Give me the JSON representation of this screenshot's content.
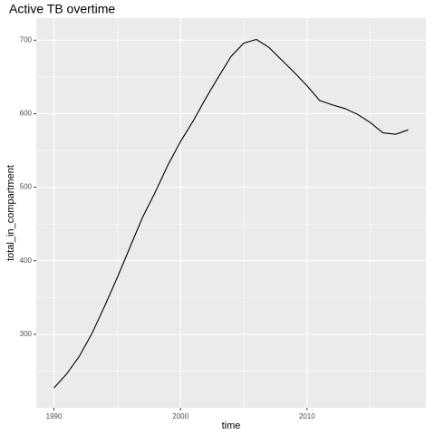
{
  "chart_data": {
    "type": "line",
    "title": "Active TB overtime",
    "x_label": "time",
    "y_label": "total_in_compartment",
    "x": [
      1990,
      1991,
      1992,
      1993,
      1994,
      1995,
      1996,
      1997,
      1998,
      1999,
      2000,
      2001,
      2002,
      2003,
      2004,
      2005,
      2006,
      2007,
      2008,
      2009,
      2010,
      2011,
      2012,
      2013,
      2014,
      2015,
      2016,
      2017,
      2018
    ],
    "series": [
      {
        "name": "total_in_compartment",
        "color": "#000000",
        "values": [
          227,
          246,
          270,
          301,
          338,
          377,
          418,
          459,
          493,
          530,
          562,
          590,
          621,
          650,
          678,
          696,
          701,
          690,
          673,
          656,
          638,
          618,
          612,
          607,
          599,
          588,
          574,
          572,
          578
        ]
      }
    ],
    "xlim": [
      1988.6,
      2019.4
    ],
    "xticks": [
      1990,
      2000,
      2010
    ],
    "xminor": [
      1995,
      2005,
      2015
    ],
    "ylim": [
      200,
      730
    ],
    "yticks": [
      300,
      400,
      500,
      600,
      700
    ],
    "yminor": [
      250,
      350,
      450,
      550,
      650
    ],
    "grid": true
  }
}
